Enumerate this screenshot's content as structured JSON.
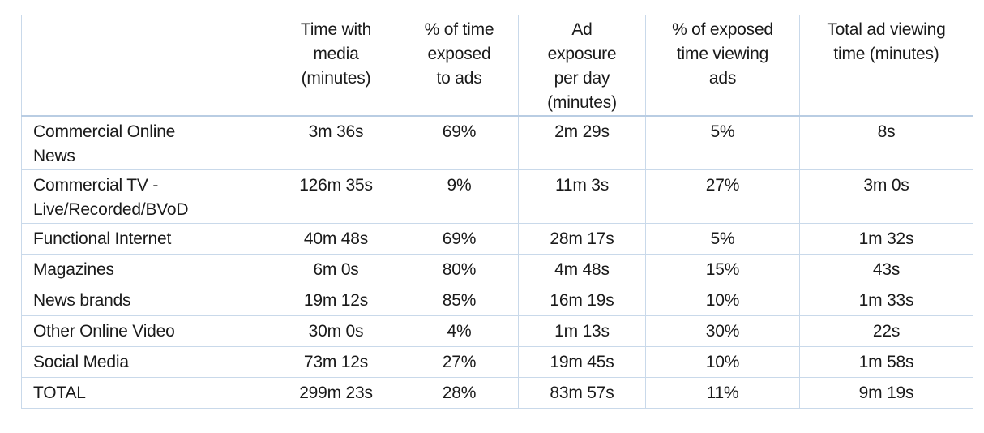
{
  "chart_data": {
    "type": "table",
    "columns": [
      "",
      "Time with media (minutes)",
      "% of time exposed to ads",
      "Ad exposure per day (minutes)",
      "% of exposed time viewing ads",
      "Total ad viewing time (minutes)"
    ],
    "header_lines": [
      [],
      [
        "Time with",
        "media",
        "(minutes)"
      ],
      [
        "% of time",
        "exposed",
        "to ads"
      ],
      [
        "Ad",
        "exposure",
        "per day",
        "(minutes)"
      ],
      [
        "% of exposed",
        "time viewing",
        "ads"
      ],
      [
        "Total ad viewing",
        "time (minutes)"
      ]
    ],
    "rows": [
      {
        "label_lines": [
          "Commercial Online",
          "News"
        ],
        "values": [
          "3m 36s",
          "69%",
          "2m 29s",
          "5%",
          "8s"
        ]
      },
      {
        "label_lines": [
          "Commercial TV -",
          "Live/Recorded/BVoD"
        ],
        "values": [
          "126m 35s",
          "9%",
          "11m 3s",
          "27%",
          "3m 0s"
        ]
      },
      {
        "label_lines": [
          "Functional Internet"
        ],
        "values": [
          "40m 48s",
          "69%",
          "28m 17s",
          "5%",
          "1m 32s"
        ]
      },
      {
        "label_lines": [
          "Magazines"
        ],
        "values": [
          "6m 0s",
          "80%",
          "4m 48s",
          "15%",
          "43s"
        ]
      },
      {
        "label_lines": [
          "News brands"
        ],
        "values": [
          "19m 12s",
          "85%",
          "16m 19s",
          "10%",
          "1m 33s"
        ]
      },
      {
        "label_lines": [
          "Other Online Video"
        ],
        "values": [
          "30m 0s",
          "4%",
          "1m 13s",
          "30%",
          "22s"
        ]
      },
      {
        "label_lines": [
          "Social Media"
        ],
        "values": [
          "73m 12s",
          "27%",
          "19m 45s",
          "10%",
          "1m 58s"
        ]
      },
      {
        "label_lines": [
          "TOTAL"
        ],
        "values": [
          "299m 23s",
          "28%",
          "83m 57s",
          "11%",
          "9m 19s"
        ]
      }
    ],
    "colors": {
      "border": "#c9d9ea",
      "header_rule": "#b9cde3",
      "text": "#1a1a1a"
    }
  }
}
